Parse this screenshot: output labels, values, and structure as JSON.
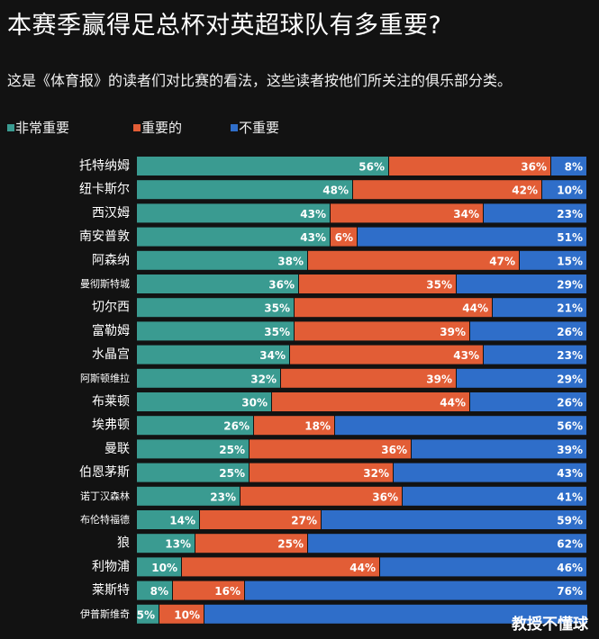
{
  "title": "本赛季赢得足总杯对英超球队有多重要?",
  "subtitle": "这是《体育报》的读者们对比赛的看法，这些读者按他们所关注的俱乐部分类。",
  "watermark": "教授不懂球",
  "colors": {
    "very_important": "#3a9b91",
    "important": "#e25d36",
    "not_important": "#2f6ec9",
    "background": "#121212"
  },
  "chart_data": {
    "type": "bar",
    "orientation": "horizontal",
    "stacked": true,
    "percent": true,
    "title": "本赛季赢得足总杯对英超球队有多重要?",
    "subtitle": "这是《体育报》的读者们对比赛的看法，这些读者按他们所关注的俱乐部分类。",
    "legend_position": "top-left",
    "grid": false,
    "xlim": [
      0,
      100
    ],
    "categories": [
      "托特纳姆",
      "纽卡斯尔",
      "西汉姆",
      "南安普敦",
      "阿森纳",
      "曼彻斯特城",
      "切尔西",
      "富勒姆",
      "水晶宫",
      "阿斯顿维拉",
      "布莱顿",
      "埃弗顿",
      "曼联",
      "伯恩茅斯",
      "诺丁汉森林",
      "布伦特福德",
      "狼",
      "利物浦",
      "莱斯特",
      "伊普斯维奇"
    ],
    "series": [
      {
        "name": "非常重要",
        "color": "#3a9b91",
        "values": [
          56,
          48,
          43,
          43,
          38,
          36,
          35,
          35,
          34,
          32,
          30,
          26,
          25,
          25,
          23,
          14,
          13,
          10,
          8,
          5
        ]
      },
      {
        "name": "重要的",
        "color": "#e25d36",
        "values": [
          36,
          42,
          34,
          6,
          47,
          35,
          44,
          39,
          43,
          39,
          44,
          18,
          36,
          32,
          36,
          27,
          25,
          44,
          16,
          10
        ]
      },
      {
        "name": "不重要",
        "color": "#2f6ec9",
        "values": [
          8,
          10,
          23,
          51,
          15,
          29,
          21,
          26,
          23,
          29,
          26,
          56,
          39,
          43,
          41,
          59,
          62,
          46,
          76,
          null
        ]
      }
    ]
  }
}
